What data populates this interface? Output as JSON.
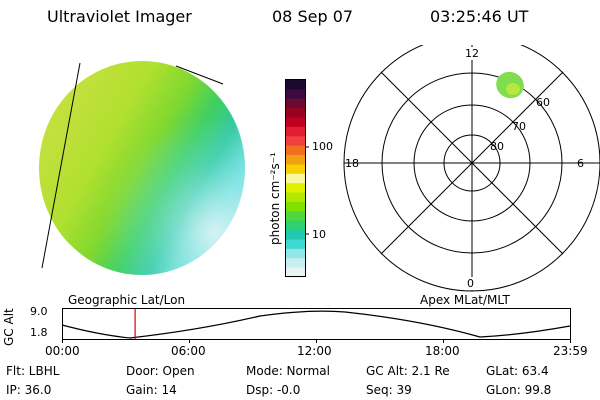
{
  "header": {
    "instrument": "Ultraviolet Imager",
    "date": "08 Sep 07",
    "time": "03:25:46 UT"
  },
  "colorbar": {
    "unit_label": "photon cm⁻²s⁻¹",
    "ticks": [
      "100",
      "10"
    ],
    "colors": [
      "#1a0a2e",
      "#3a0a40",
      "#6a0a30",
      "#9a0020",
      "#c00020",
      "#e02030",
      "#f04040",
      "#f07020",
      "#f0a010",
      "#f8d000",
      "#f8f8a0",
      "#e0f000",
      "#b0e800",
      "#80e000",
      "#50d840",
      "#30d070",
      "#20c8b0",
      "#40d8d0",
      "#90e8e8",
      "#c8f0f0",
      "#e8f4f4"
    ]
  },
  "polar": {
    "labels": {
      "top": "12",
      "left": "18",
      "right": "6",
      "bottom": "0"
    },
    "lat_labels": [
      "60",
      "70",
      "80"
    ]
  },
  "altitude_plot": {
    "ylabel": "GC Alt",
    "yticks": [
      "9.0",
      "1.8"
    ],
    "left_title": "Geographic Lat/Lon",
    "right_title": "Apex MLat/MLT",
    "xticks": [
      "00:00",
      "06:00",
      "12:00",
      "18:00",
      "23:59"
    ],
    "marker_hours": 3.43
  },
  "info": {
    "filter": "Flt: LBHL",
    "door": "Door: Open",
    "mode": "Mode: Normal",
    "gc_alt": "GC Alt: 2.1 Re",
    "glat": "GLat:  63.4",
    "ip": "IP: 36.0",
    "gain": "Gain: 14",
    "dsp": "Dsp:   -0.0",
    "seq": "Seq: 39",
    "glon": "GLon:  99.8"
  }
}
